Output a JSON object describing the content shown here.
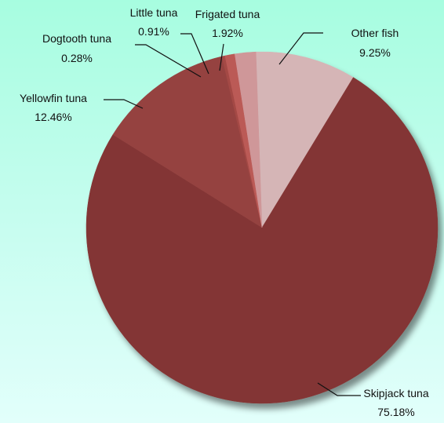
{
  "chart_data": {
    "type": "pie",
    "title": "",
    "slices": [
      {
        "name": "Other fish",
        "value": 9.25,
        "label": "9.25%",
        "color": "#d5b5b6"
      },
      {
        "name": "Skipjack tuna",
        "value": 75.18,
        "label": "75.18%",
        "color": "#833534"
      },
      {
        "name": "Yellowfin tuna",
        "value": 12.46,
        "label": "12.46%",
        "color": "#954341"
      },
      {
        "name": "Dogtooth tuna",
        "value": 0.28,
        "label": "0.28%",
        "color": "#a44845"
      },
      {
        "name": "Little tuna",
        "value": 0.91,
        "label": "0.91%",
        "color": "#bb5a57"
      },
      {
        "name": "Frigated tuna",
        "value": 1.92,
        "label": "1.92%",
        "color": "#cf9799"
      }
    ],
    "start_angle_deg": -2,
    "legend": "none"
  }
}
